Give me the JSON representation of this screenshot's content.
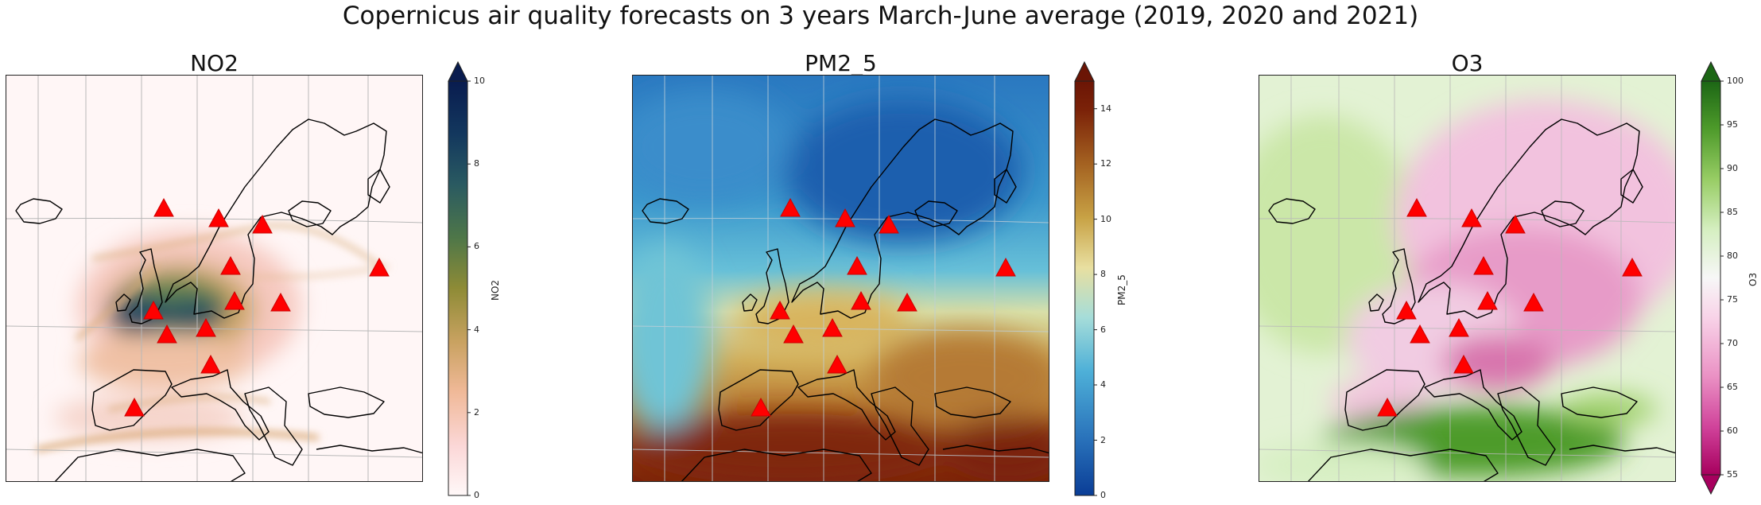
{
  "figure": {
    "title": "Copernicus air quality forecasts on 3 years March-June average (2019, 2020 and 2021)"
  },
  "panels": [
    {
      "id": "no2",
      "title": "NO2",
      "colorbar": {
        "label": "NO2",
        "min": 0,
        "max": 10,
        "ticks": [
          0,
          2,
          4,
          6,
          8,
          10
        ],
        "extend": "max",
        "colors": [
          "#fff8f8",
          "#fbd7d7",
          "#f0b998",
          "#c9a261",
          "#8e8b36",
          "#4f7748",
          "#2a5a61",
          "#13385e",
          "#091c4f"
        ]
      }
    },
    {
      "id": "pm25",
      "title": "PM2_5",
      "colorbar": {
        "label": "PM2_5",
        "min": 0,
        "max": 15,
        "ticks": [
          0,
          2,
          4,
          6,
          8,
          10,
          12,
          14
        ],
        "extend": "max",
        "colors": [
          "#0a3d96",
          "#2a73bb",
          "#4eb0d8",
          "#a6ddd9",
          "#e8dfa0",
          "#c8a245",
          "#a46221",
          "#7b2208",
          "#6b1505"
        ]
      }
    },
    {
      "id": "o3",
      "title": "O3",
      "colorbar": {
        "label": "O3",
        "min": 55,
        "max": 100,
        "ticks": [
          55,
          60,
          65,
          70,
          75,
          80,
          85,
          90,
          95,
          100
        ],
        "extend": "both",
        "colors": [
          "#a7005e",
          "#d0429a",
          "#ea91c4",
          "#f8d3e8",
          "#f7f7f7",
          "#d6efc2",
          "#98cd65",
          "#4d9a2a",
          "#1c6615"
        ]
      }
    }
  ],
  "map_data": {
    "graticule": {
      "meridians_deg": [
        -30,
        -20,
        -10,
        0,
        10,
        20,
        30,
        40,
        50
      ],
      "parallels_deg": [
        30,
        40,
        50,
        60,
        70
      ]
    },
    "markers": {
      "shape": "triangle",
      "color": "#ff0000",
      "points_deg": [
        {
          "lon": -21.0,
          "lat": 64.0
        },
        {
          "lon": 10.5,
          "lat": 59.9
        },
        {
          "lon": 18.0,
          "lat": 59.3
        },
        {
          "lon": 12.5,
          "lat": 55.7
        },
        {
          "lon": 37.6,
          "lat": 55.7
        },
        {
          "lon": 13.4,
          "lat": 52.5
        },
        {
          "lon": 21.0,
          "lat": 52.2
        },
        {
          "lon": 0.0,
          "lat": 51.5
        },
        {
          "lon": 2.3,
          "lat": 48.9
        },
        {
          "lon": 8.5,
          "lat": 47.4
        },
        {
          "lon": 9.2,
          "lat": 45.5
        },
        {
          "lon": -3.7,
          "lat": 40.4
        }
      ]
    }
  }
}
